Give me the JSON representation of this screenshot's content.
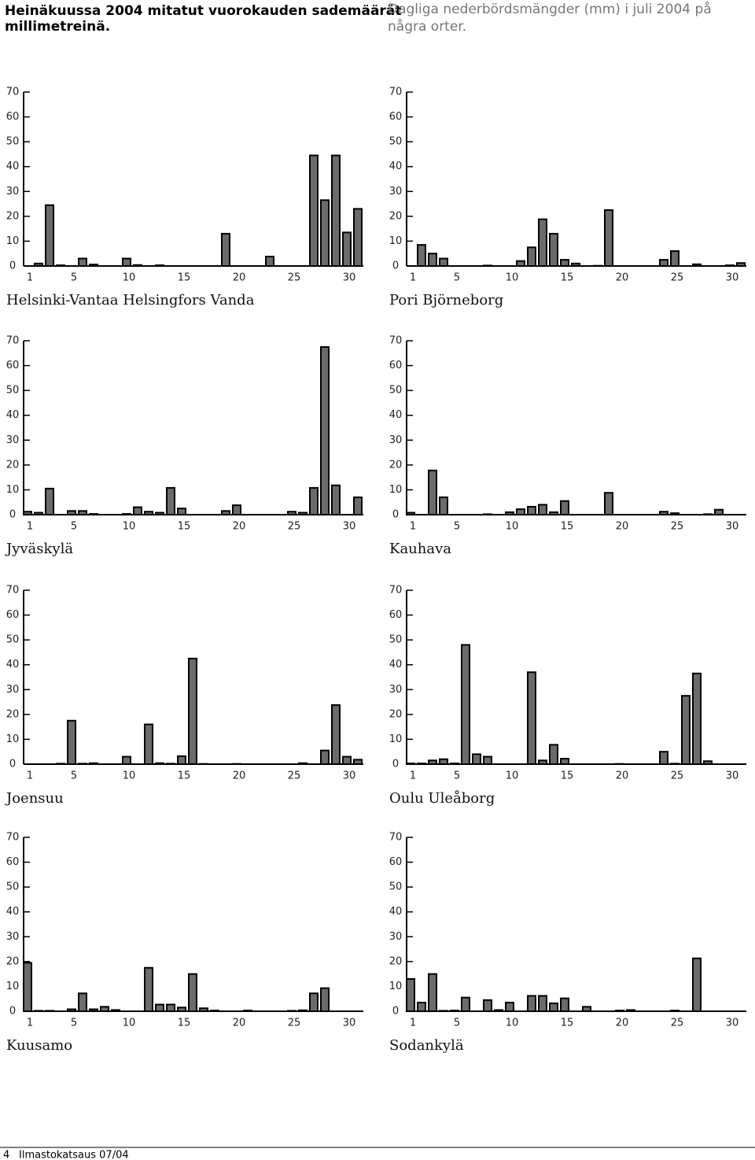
{
  "header": {
    "title_fi": [
      "Heinäkuussa 2004 mitatut vuorokauden sademäärät",
      "millimetreinä."
    ],
    "title_sv": [
      "Dagliga nederbördsmängder (mm) i juli 2004 på",
      "några orter."
    ]
  },
  "footer": {
    "page": "4",
    "publication": "Ilmastokatsaus 07/04"
  },
  "chart_data": [
    {
      "type": "bar",
      "title": "Helsinki-Vantaa Helsingfors Vanda",
      "color": "#6b6b6b",
      "categories": [
        1,
        null,
        null,
        null,
        5,
        null,
        null,
        null,
        null,
        10,
        null,
        null,
        null,
        null,
        15,
        null,
        null,
        null,
        null,
        20,
        null,
        null,
        null,
        null,
        25,
        null,
        null,
        null,
        null,
        30,
        null
      ],
      "values": [
        0,
        1,
        24.5,
        0.3,
        0,
        3,
        0.6,
        0,
        0,
        3,
        0.4,
        0,
        0.3,
        0,
        0,
        0,
        0,
        0,
        13,
        0,
        0,
        0,
        3.8,
        0,
        0,
        0,
        44.5,
        26.5,
        44.5,
        13.5,
        23
      ],
      "ylim": [
        0,
        70
      ],
      "yticks": [
        0,
        10,
        20,
        30,
        40,
        50,
        60,
        70
      ]
    },
    {
      "type": "bar",
      "title": "Pori Björneborg",
      "color": "#6b6b6b",
      "categories": [
        1,
        null,
        null,
        null,
        5,
        null,
        null,
        null,
        null,
        10,
        null,
        null,
        null,
        null,
        15,
        null,
        null,
        null,
        null,
        20,
        null,
        null,
        null,
        null,
        25,
        null,
        null,
        null,
        null,
        30,
        null
      ],
      "values": [
        0,
        8.5,
        5,
        3,
        0,
        0,
        0,
        0.2,
        0,
        0,
        2,
        7.5,
        18.8,
        13,
        2.5,
        1,
        0,
        0.1,
        22.5,
        0,
        0,
        0,
        0,
        2.5,
        6,
        0,
        0.7,
        0,
        0,
        0.3,
        1.2
      ],
      "ylim": [
        0,
        70
      ],
      "yticks": [
        0,
        10,
        20,
        30,
        40,
        50,
        60,
        70
      ]
    },
    {
      "type": "bar",
      "title": "Jyväskylä",
      "color": "#6b6b6b",
      "categories": [
        1,
        null,
        null,
        null,
        5,
        null,
        null,
        null,
        null,
        10,
        null,
        null,
        null,
        null,
        15,
        null,
        null,
        null,
        null,
        20,
        null,
        null,
        null,
        null,
        25,
        null,
        null,
        null,
        null,
        30,
        null
      ],
      "values": [
        1.2,
        0.8,
        10.5,
        0,
        1.5,
        1.5,
        0.3,
        0,
        0,
        0.3,
        3,
        1.2,
        0.8,
        10.8,
        2.5,
        0,
        0,
        0,
        1.5,
        3.8,
        0,
        0,
        0,
        0,
        1.2,
        0.8,
        10.8,
        67.5,
        11.8,
        0,
        7
      ],
      "ylim": [
        0,
        70
      ],
      "yticks": [
        0,
        10,
        20,
        30,
        40,
        50,
        60,
        70
      ]
    },
    {
      "type": "bar",
      "title": "Kauhava",
      "color": "#6b6b6b",
      "categories": [
        1,
        null,
        null,
        null,
        5,
        null,
        null,
        null,
        null,
        10,
        null,
        null,
        null,
        null,
        15,
        null,
        null,
        null,
        null,
        20,
        null,
        null,
        null,
        null,
        25,
        null,
        null,
        null,
        null,
        30,
        null
      ],
      "values": [
        0.8,
        0,
        17.8,
        7,
        0,
        0,
        0,
        0.2,
        0,
        1,
        2.2,
        3.2,
        4,
        1,
        5.5,
        0,
        0,
        0,
        8.8,
        0,
        0,
        0,
        0,
        1.2,
        0.6,
        0,
        0,
        0.2,
        2,
        0,
        0
      ],
      "ylim": [
        0,
        70
      ],
      "yticks": [
        0,
        10,
        20,
        30,
        40,
        50,
        60,
        70
      ]
    },
    {
      "type": "bar",
      "title": "Joensuu",
      "color": "#6b6b6b",
      "categories": [
        1,
        null,
        null,
        null,
        5,
        null,
        null,
        null,
        null,
        10,
        null,
        null,
        null,
        null,
        15,
        null,
        null,
        null,
        null,
        20,
        null,
        null,
        null,
        null,
        25,
        null,
        null,
        null,
        null,
        30,
        null
      ],
      "values": [
        0,
        0,
        0,
        0.2,
        17.5,
        0.2,
        0.4,
        0,
        0,
        3,
        0,
        16,
        0.4,
        0.2,
        3.2,
        42.5,
        0.1,
        0,
        0,
        0.1,
        0,
        0,
        0,
        0,
        0,
        0.4,
        0,
        5.5,
        23.8,
        3,
        1.8
      ],
      "ylim": [
        0,
        70
      ],
      "yticks": [
        0,
        10,
        20,
        30,
        40,
        50,
        60,
        70
      ]
    },
    {
      "type": "bar",
      "title": "Oulu Uleåborg",
      "color": "#6b6b6b",
      "categories": [
        1,
        null,
        null,
        null,
        5,
        null,
        null,
        null,
        null,
        10,
        null,
        null,
        null,
        null,
        15,
        null,
        null,
        null,
        null,
        20,
        null,
        null,
        null,
        null,
        25,
        null,
        null,
        null,
        null,
        30,
        null
      ],
      "values": [
        0.3,
        0.3,
        1.5,
        2,
        0.3,
        48,
        4,
        3,
        0,
        0,
        0,
        37,
        1.5,
        7.8,
        2.2,
        0,
        0,
        0,
        0,
        0.1,
        0,
        0,
        0,
        5,
        0.2,
        27.5,
        36.5,
        1.2,
        0,
        0,
        0
      ],
      "ylim": [
        0,
        70
      ],
      "yticks": [
        0,
        10,
        20,
        30,
        40,
        50,
        60,
        70
      ]
    },
    {
      "type": "bar",
      "title": "Kuusamo",
      "color": "#6b6b6b",
      "categories": [
        1,
        null,
        null,
        null,
        5,
        null,
        null,
        null,
        null,
        10,
        null,
        null,
        null,
        null,
        15,
        null,
        null,
        null,
        null,
        20,
        null,
        null,
        null,
        null,
        25,
        null,
        null,
        null,
        null,
        30,
        null
      ],
      "values": [
        19.5,
        0.2,
        0.2,
        0,
        0.8,
        7.2,
        0.8,
        1.8,
        0.5,
        0,
        0,
        17.5,
        2.7,
        2.7,
        1.5,
        15,
        1.2,
        0.3,
        0,
        0,
        0.3,
        0,
        0,
        0,
        0.2,
        0.4,
        7.2,
        9.3,
        0,
        0,
        0
      ],
      "ylim": [
        0,
        70
      ],
      "yticks": [
        0,
        10,
        20,
        30,
        40,
        50,
        60,
        70
      ]
    },
    {
      "type": "bar",
      "title": "Sodankylä",
      "color": "#6b6b6b",
      "categories": [
        1,
        null,
        null,
        null,
        5,
        null,
        null,
        null,
        null,
        10,
        null,
        null,
        null,
        null,
        15,
        null,
        null,
        null,
        null,
        20,
        null,
        null,
        null,
        null,
        25,
        null,
        null,
        null,
        null,
        30,
        null
      ],
      "values": [
        13,
        3.5,
        15,
        0.2,
        0.3,
        5.5,
        0,
        4.5,
        0.5,
        3.5,
        0,
        6.2,
        6.2,
        3.2,
        5.2,
        0,
        1.8,
        0,
        0,
        0.3,
        0.5,
        0,
        0,
        0,
        0.3,
        0,
        21.3,
        0,
        0,
        0,
        0
      ],
      "ylim": [
        0,
        70
      ],
      "yticks": [
        0,
        10,
        20,
        30,
        40,
        50,
        60,
        70
      ]
    }
  ]
}
